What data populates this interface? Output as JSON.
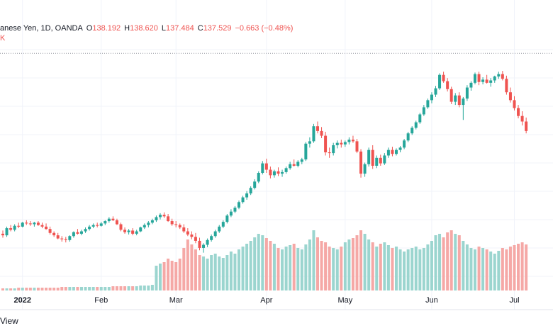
{
  "header": {
    "symbol_text": "anese Yen, 1D, OANDA",
    "o_label": "O",
    "o_value": "138.192",
    "h_label": "H",
    "h_value": "138.620",
    "l_label": "L",
    "l_value": "137.484",
    "c_label": "C",
    "c_value": "137.529",
    "change": "−0.663 (−0.48%)",
    "sub_marker": "K"
  },
  "footer": {
    "text": "View"
  },
  "colors": {
    "up": "#26a69a",
    "down": "#ef5350",
    "up_volume": "#9bd5cf",
    "down_volume": "#f5a8a6",
    "grid": "#f0f3fa",
    "price_line": "#9598a1"
  },
  "chart_data": {
    "type": "candlestick",
    "title": "",
    "xlabel": "",
    "ylabel": "",
    "grid": true,
    "last_close": 137.529,
    "x_ticks": [
      {
        "label": "2022",
        "i": 5,
        "year": true
      },
      {
        "label": "Feb",
        "i": 25
      },
      {
        "label": "Mar",
        "i": 44
      },
      {
        "label": "Apr",
        "i": 67
      },
      {
        "label": "May",
        "i": 87
      },
      {
        "label": "Jun",
        "i": 109
      },
      {
        "label": "Jul",
        "i": 130
      }
    ],
    "ylim": [
      112,
      138
    ],
    "volume_max": 100,
    "candles": [
      [
        114.7,
        115.1,
        114.2,
        114.5,
        3
      ],
      [
        114.5,
        115.6,
        114.3,
        115.4,
        3
      ],
      [
        115.4,
        115.8,
        115.0,
        115.2,
        3
      ],
      [
        115.2,
        115.9,
        115.0,
        115.7,
        3
      ],
      [
        115.7,
        116.1,
        115.4,
        115.6,
        4
      ],
      [
        115.6,
        116.2,
        115.5,
        116.1,
        4
      ],
      [
        116.1,
        116.4,
        115.8,
        116.0,
        4
      ],
      [
        116.0,
        116.3,
        115.7,
        115.9,
        4
      ],
      [
        115.9,
        116.2,
        115.6,
        116.1,
        4
      ],
      [
        116.1,
        116.3,
        115.7,
        115.8,
        4
      ],
      [
        115.8,
        116.1,
        115.4,
        115.6,
        4
      ],
      [
        115.6,
        116.0,
        115.2,
        115.3,
        4
      ],
      [
        115.3,
        115.6,
        114.6,
        114.8,
        4
      ],
      [
        114.8,
        115.0,
        114.3,
        114.5,
        4
      ],
      [
        114.5,
        114.8,
        114.0,
        114.1,
        4
      ],
      [
        114.1,
        114.4,
        113.7,
        114.0,
        5
      ],
      [
        114.0,
        114.3,
        113.6,
        113.9,
        5
      ],
      [
        113.9,
        114.5,
        113.7,
        114.4,
        5
      ],
      [
        114.4,
        115.0,
        114.2,
        114.9,
        5
      ],
      [
        114.9,
        115.3,
        114.6,
        114.7,
        5
      ],
      [
        114.7,
        115.2,
        114.5,
        115.0,
        5
      ],
      [
        115.0,
        115.5,
        114.8,
        115.3,
        5
      ],
      [
        115.3,
        115.8,
        115.1,
        115.6,
        5
      ],
      [
        115.6,
        116.0,
        115.4,
        115.8,
        5
      ],
      [
        115.8,
        116.1,
        115.5,
        115.7,
        5
      ],
      [
        115.7,
        116.2,
        115.6,
        116.0,
        5
      ],
      [
        116.0,
        116.4,
        115.8,
        116.3,
        5
      ],
      [
        116.3,
        116.8,
        116.1,
        116.6,
        5
      ],
      [
        116.6,
        116.9,
        116.3,
        116.4,
        6
      ],
      [
        116.4,
        116.6,
        115.8,
        115.9,
        6
      ],
      [
        115.9,
        116.1,
        115.0,
        115.2,
        6
      ],
      [
        115.2,
        115.5,
        114.7,
        114.9,
        6
      ],
      [
        114.9,
        115.3,
        114.6,
        115.1,
        6
      ],
      [
        115.1,
        115.4,
        114.5,
        114.7,
        6
      ],
      [
        114.7,
        115.2,
        114.5,
        115.0,
        6
      ],
      [
        115.0,
        115.6,
        114.9,
        115.5,
        7
      ],
      [
        115.5,
        116.0,
        115.3,
        115.8,
        7
      ],
      [
        115.8,
        116.3,
        115.5,
        116.1,
        7
      ],
      [
        116.1,
        116.6,
        115.9,
        116.4,
        8
      ],
      [
        116.4,
        117.0,
        116.2,
        116.8,
        35
      ],
      [
        116.8,
        117.3,
        116.5,
        117.1,
        38
      ],
      [
        117.1,
        117.4,
        116.7,
        116.9,
        40
      ],
      [
        116.9,
        117.2,
        116.2,
        116.3,
        45
      ],
      [
        116.3,
        116.6,
        115.7,
        115.9,
        42
      ],
      [
        115.9,
        116.3,
        115.5,
        115.8,
        40
      ],
      [
        115.8,
        116.0,
        115.3,
        115.5,
        45
      ],
      [
        115.5,
        115.9,
        114.8,
        115.0,
        60
      ],
      [
        115.0,
        115.4,
        114.4,
        114.6,
        72
      ],
      [
        114.6,
        115.0,
        114.0,
        114.3,
        65
      ],
      [
        114.3,
        114.8,
        113.5,
        113.8,
        58
      ],
      [
        113.8,
        114.2,
        112.6,
        112.9,
        50
      ],
      [
        112.9,
        113.5,
        112.3,
        113.3,
        48
      ],
      [
        113.3,
        114.1,
        113.0,
        113.9,
        45
      ],
      [
        113.9,
        114.6,
        113.7,
        114.4,
        50
      ],
      [
        114.4,
        115.2,
        114.2,
        115.0,
        52
      ],
      [
        115.0,
        115.8,
        114.8,
        115.6,
        48
      ],
      [
        115.6,
        116.4,
        115.4,
        116.2,
        46
      ],
      [
        116.2,
        117.2,
        116.0,
        117.0,
        50
      ],
      [
        117.0,
        117.8,
        116.8,
        117.5,
        55
      ],
      [
        117.5,
        118.2,
        117.3,
        118.0,
        52
      ],
      [
        118.0,
        118.9,
        117.8,
        118.7,
        58
      ],
      [
        118.7,
        119.5,
        118.5,
        119.3,
        62
      ],
      [
        119.3,
        120.1,
        119.0,
        119.8,
        66
      ],
      [
        119.8,
        120.7,
        119.6,
        120.5,
        70
      ],
      [
        120.5,
        121.6,
        120.3,
        121.3,
        75
      ],
      [
        121.3,
        122.6,
        121.1,
        122.4,
        80
      ],
      [
        122.4,
        123.9,
        122.2,
        123.6,
        78
      ],
      [
        123.6,
        124.2,
        122.4,
        122.8,
        74
      ],
      [
        122.8,
        123.2,
        121.7,
        122.1,
        70
      ],
      [
        122.1,
        122.8,
        121.8,
        122.6,
        66
      ],
      [
        122.6,
        123.1,
        122.0,
        122.3,
        60
      ],
      [
        122.3,
        122.8,
        121.9,
        122.5,
        58
      ],
      [
        122.5,
        123.2,
        122.3,
        123.0,
        62
      ],
      [
        123.0,
        123.8,
        122.8,
        123.5,
        64
      ],
      [
        123.5,
        124.1,
        123.2,
        123.3,
        66
      ],
      [
        123.3,
        124.0,
        123.1,
        123.8,
        60
      ],
      [
        123.8,
        124.3,
        123.5,
        124.1,
        58
      ],
      [
        124.1,
        126.3,
        123.9,
        126.1,
        65
      ],
      [
        126.1,
        126.9,
        125.6,
        126.4,
        72
      ],
      [
        126.4,
        128.6,
        126.2,
        128.3,
        85
      ],
      [
        128.3,
        128.9,
        127.4,
        127.7,
        75
      ],
      [
        127.7,
        128.2,
        126.8,
        127.1,
        70
      ],
      [
        127.1,
        127.6,
        124.6,
        125.0,
        68
      ],
      [
        125.0,
        125.6,
        124.3,
        124.9,
        62
      ],
      [
        124.9,
        126.2,
        124.6,
        125.9,
        60
      ],
      [
        125.9,
        126.5,
        125.5,
        126.2,
        58
      ],
      [
        126.2,
        126.6,
        125.6,
        126.0,
        62
      ],
      [
        126.0,
        126.5,
        125.7,
        126.3,
        68
      ],
      [
        126.3,
        126.9,
        126.0,
        126.6,
        72
      ],
      [
        126.6,
        127.1,
        126.2,
        126.4,
        74
      ],
      [
        126.4,
        126.7,
        124.9,
        125.1,
        78
      ],
      [
        125.1,
        125.4,
        121.8,
        122.3,
        85
      ],
      [
        122.3,
        123.7,
        121.9,
        123.5,
        80
      ],
      [
        123.5,
        125.6,
        123.2,
        125.3,
        72
      ],
      [
        125.3,
        125.9,
        122.9,
        123.3,
        68
      ],
      [
        123.3,
        124.6,
        123.0,
        124.3,
        62
      ],
      [
        124.3,
        124.7,
        123.3,
        123.6,
        66
      ],
      [
        123.6,
        124.9,
        123.4,
        124.6,
        68
      ],
      [
        124.6,
        125.6,
        124.3,
        125.3,
        64
      ],
      [
        125.3,
        125.7,
        124.5,
        124.8,
        60
      ],
      [
        124.8,
        125.5,
        124.6,
        125.3,
        62
      ],
      [
        125.3,
        125.8,
        125.0,
        125.6,
        58
      ],
      [
        125.6,
        126.7,
        125.4,
        126.5,
        55
      ],
      [
        126.5,
        127.6,
        126.3,
        127.4,
        58
      ],
      [
        127.4,
        128.3,
        127.2,
        128.1,
        60
      ],
      [
        128.1,
        129.0,
        127.9,
        128.8,
        62
      ],
      [
        128.8,
        130.0,
        128.6,
        129.8,
        58
      ],
      [
        129.8,
        131.0,
        129.6,
        130.7,
        60
      ],
      [
        130.7,
        131.8,
        130.5,
        131.6,
        65
      ],
      [
        131.6,
        132.6,
        131.2,
        132.3,
        70
      ],
      [
        132.3,
        133.4,
        132.0,
        133.1,
        78
      ],
      [
        133.1,
        135.0,
        132.9,
        134.8,
        80
      ],
      [
        134.8,
        135.2,
        133.8,
        134.0,
        75
      ],
      [
        134.0,
        134.4,
        132.7,
        133.0,
        82
      ],
      [
        133.0,
        133.3,
        131.1,
        131.4,
        85
      ],
      [
        131.4,
        132.5,
        131.0,
        132.2,
        80
      ],
      [
        132.2,
        132.6,
        130.7,
        131.0,
        78
      ],
      [
        131.0,
        132.0,
        129.1,
        131.8,
        70
      ],
      [
        131.8,
        133.5,
        131.5,
        133.2,
        65
      ],
      [
        133.2,
        134.0,
        132.8,
        133.8,
        60
      ],
      [
        133.8,
        135.1,
        133.6,
        134.9,
        58
      ],
      [
        134.9,
        135.2,
        133.5,
        133.9,
        62
      ],
      [
        133.9,
        134.5,
        133.6,
        134.2,
        60
      ],
      [
        134.2,
        134.8,
        133.7,
        133.8,
        58
      ],
      [
        133.8,
        134.4,
        133.3,
        134.1,
        55
      ],
      [
        134.1,
        134.7,
        133.8,
        134.6,
        52
      ],
      [
        134.6,
        135.2,
        134.3,
        134.9,
        56
      ],
      [
        134.9,
        135.3,
        134.1,
        134.3,
        60
      ],
      [
        134.3,
        134.7,
        132.3,
        132.6,
        58
      ],
      [
        132.6,
        133.2,
        131.3,
        131.6,
        62
      ],
      [
        131.6,
        132.1,
        130.3,
        130.6,
        64
      ],
      [
        130.6,
        131.0,
        129.3,
        129.6,
        66
      ],
      [
        129.6,
        130.2,
        128.4,
        128.9,
        68
      ],
      [
        128.9,
        129.4,
        127.4,
        127.7,
        65
      ]
    ]
  }
}
